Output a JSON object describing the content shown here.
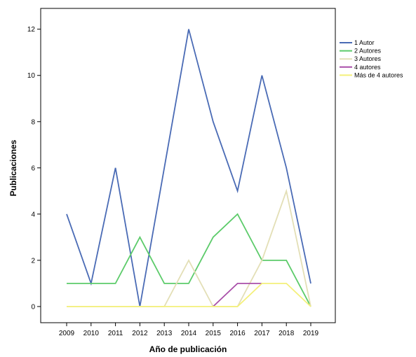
{
  "chart_data": {
    "type": "line",
    "xlabel": "Año de publicación",
    "ylabel": "Publicaciones",
    "categories": [
      "2009",
      "2010",
      "2011",
      "2012",
      "2013",
      "2014",
      "2015",
      "2016",
      "2017",
      "2018",
      "2019"
    ],
    "yticks": [
      0,
      2,
      4,
      6,
      8,
      10,
      12
    ],
    "ylim": [
      -0.7,
      12.9
    ],
    "grid": false,
    "legend_position": "right",
    "series": [
      {
        "name": "1 Autor",
        "color": "#4a6bb5",
        "values": [
          4,
          1,
          6,
          0,
          6,
          12,
          8,
          5,
          10,
          6,
          1
        ]
      },
      {
        "name": "2 Autores",
        "color": "#5ccb6a",
        "values": [
          1,
          1,
          1,
          3,
          1,
          1,
          3,
          4,
          2,
          2,
          0
        ]
      },
      {
        "name": "3 Autores",
        "color": "#e3dfb6",
        "values": [
          0,
          0,
          0,
          0,
          0,
          2,
          0,
          0,
          2,
          5,
          0
        ]
      },
      {
        "name": "4 autores",
        "color": "#a94fa9",
        "values": [
          null,
          null,
          null,
          null,
          null,
          null,
          0,
          1,
          1,
          null,
          null
        ]
      },
      {
        "name": "Más de 4 autores",
        "color": "#f4f07a",
        "values": [
          0,
          0,
          0,
          0,
          0,
          0,
          0,
          0,
          1,
          1,
          0
        ]
      }
    ]
  }
}
